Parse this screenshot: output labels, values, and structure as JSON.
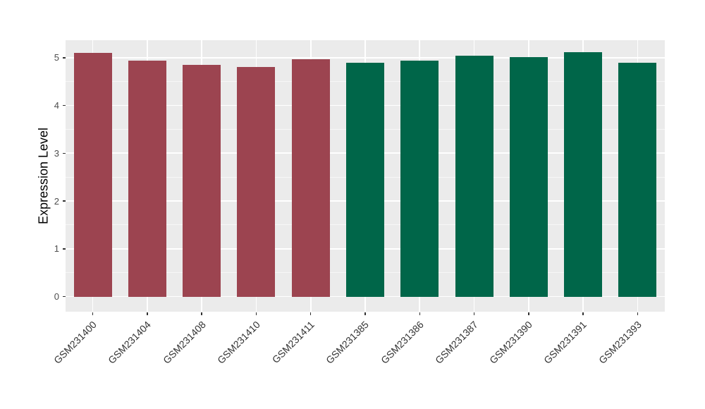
{
  "chart_data": {
    "type": "bar",
    "title": "",
    "xlabel": "",
    "ylabel": "Expression Level",
    "categories": [
      "GSM231400",
      "GSM231404",
      "GSM231408",
      "GSM231410",
      "GSM231411",
      "GSM231385",
      "GSM231386",
      "GSM231387",
      "GSM231390",
      "GSM231391",
      "GSM231393"
    ],
    "values": [
      5.1,
      4.94,
      4.85,
      4.8,
      4.97,
      4.89,
      4.94,
      5.04,
      5.01,
      5.11,
      4.9
    ],
    "bar_colors": [
      "#9C4450",
      "#9C4450",
      "#9C4450",
      "#9C4450",
      "#9C4450",
      "#006649",
      "#006649",
      "#006649",
      "#006649",
      "#006649",
      "#006649"
    ],
    "group_colors": {
      "red_group": "#9C4450",
      "green_group": "#006649"
    },
    "yticks": [
      "0",
      "1",
      "2",
      "3",
      "4",
      "5"
    ],
    "ylim": [
      -0.32,
      5.37
    ],
    "grid": "major white + minor white at 0.5 steps",
    "legend": "none",
    "panel_background": "#EBEBEB",
    "grid_color": "#FFFFFF"
  }
}
